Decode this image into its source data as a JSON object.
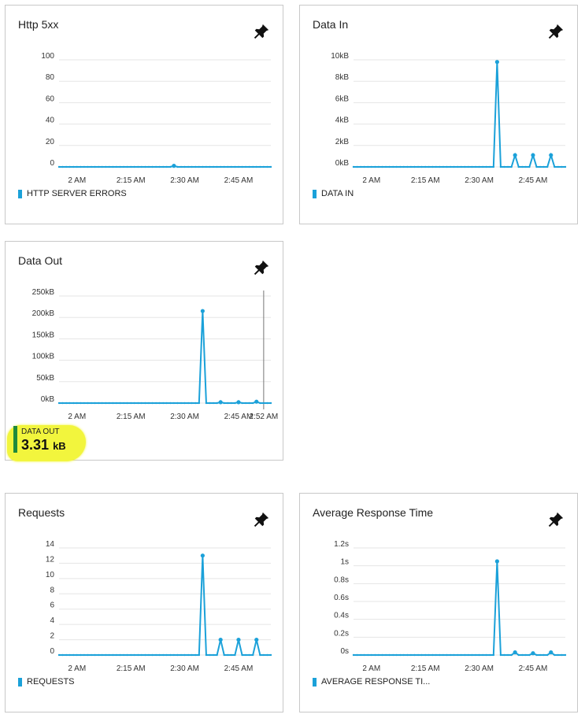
{
  "colors": {
    "series": "#1ba1d9",
    "grid": "#e5e5e5",
    "cursor": "#777777"
  },
  "pin_icon": "pushpin-icon",
  "chart_data": [
    {
      "id": "http5xx",
      "type": "line",
      "title": "Http 5xx",
      "x_ticks": [
        "2 AM",
        "2:15 AM",
        "2:30 AM",
        "2:45 AM"
      ],
      "y_ticks": [
        "100",
        "80",
        "60",
        "40",
        "20",
        "0"
      ],
      "ylim": [
        0,
        100
      ],
      "x": [
        "1:55",
        "1:56",
        "1:57",
        "1:58",
        "1:59",
        "2:00",
        "2:01",
        "2:02",
        "2:03",
        "2:04",
        "2:05",
        "2:06",
        "2:07",
        "2:08",
        "2:09",
        "2:10",
        "2:11",
        "2:12",
        "2:13",
        "2:14",
        "2:15",
        "2:16",
        "2:17",
        "2:18",
        "2:19",
        "2:20",
        "2:21",
        "2:22",
        "2:23",
        "2:24",
        "2:25",
        "2:26",
        "2:27",
        "2:28",
        "2:29",
        "2:30",
        "2:31",
        "2:32",
        "2:33",
        "2:34",
        "2:35",
        "2:36",
        "2:37",
        "2:38",
        "2:39",
        "2:40",
        "2:41",
        "2:42",
        "2:43",
        "2:44",
        "2:45",
        "2:46",
        "2:47",
        "2:48",
        "2:49",
        "2:50",
        "2:51",
        "2:52",
        "2:53",
        "2:54"
      ],
      "series": [
        {
          "name": "HTTP SERVER ERRORS",
          "values": [
            0,
            0,
            0,
            0,
            0,
            0,
            0,
            0,
            0,
            0,
            0,
            0,
            0,
            0,
            0,
            0,
            0,
            0,
            0,
            0,
            0,
            0,
            0,
            0,
            0,
            0,
            0,
            0,
            0,
            0,
            0,
            0,
            1,
            0,
            0,
            0,
            0,
            0,
            0,
            0,
            0,
            0,
            0,
            0,
            0,
            0,
            0,
            0,
            0,
            0,
            0,
            0,
            0,
            0,
            0,
            0,
            0,
            0,
            0,
            0
          ]
        }
      ]
    },
    {
      "id": "datain",
      "type": "line",
      "title": "Data In",
      "x_ticks": [
        "2 AM",
        "2:15 AM",
        "2:30 AM",
        "2:45 AM"
      ],
      "y_ticks": [
        "10kB",
        "8kB",
        "6kB",
        "4kB",
        "2kB",
        "0kB"
      ],
      "ylim": [
        0,
        10
      ],
      "x": [
        "1:55",
        "1:56",
        "1:57",
        "1:58",
        "1:59",
        "2:00",
        "2:01",
        "2:02",
        "2:03",
        "2:04",
        "2:05",
        "2:06",
        "2:07",
        "2:08",
        "2:09",
        "2:10",
        "2:11",
        "2:12",
        "2:13",
        "2:14",
        "2:15",
        "2:16",
        "2:17",
        "2:18",
        "2:19",
        "2:20",
        "2:21",
        "2:22",
        "2:23",
        "2:24",
        "2:25",
        "2:26",
        "2:27",
        "2:28",
        "2:29",
        "2:30",
        "2:31",
        "2:32",
        "2:33",
        "2:34",
        "2:35",
        "2:36",
        "2:37",
        "2:38",
        "2:39",
        "2:40",
        "2:41",
        "2:42",
        "2:43",
        "2:44",
        "2:45",
        "2:46",
        "2:47",
        "2:48",
        "2:49",
        "2:50",
        "2:51",
        "2:52",
        "2:53",
        "2:54"
      ],
      "series": [
        {
          "name": "DATA IN",
          "values": [
            0,
            0,
            0,
            0,
            0,
            0,
            0,
            0,
            0,
            0,
            0,
            0,
            0,
            0,
            0,
            0,
            0,
            0,
            0,
            0,
            0,
            0,
            0,
            0,
            0,
            0,
            0,
            0,
            0,
            0,
            0,
            0,
            0,
            0,
            0,
            0,
            0,
            0,
            0,
            0,
            9.8,
            0,
            0,
            0,
            0,
            1.1,
            0,
            0,
            0,
            0,
            1.1,
            0,
            0,
            0,
            0,
            1.1,
            0,
            0,
            0,
            0
          ]
        }
      ]
    },
    {
      "id": "dataout",
      "type": "line",
      "title": "Data Out",
      "x_ticks": [
        "2 AM",
        "2:15 AM",
        "2:30 AM",
        "2:45 AM",
        "2:52 AM"
      ],
      "y_ticks": [
        "250kB",
        "200kB",
        "150kB",
        "100kB",
        "50kB",
        "0kB"
      ],
      "ylim": [
        0,
        250
      ],
      "cursor_label": "2:52 AM",
      "x": [
        "1:55",
        "1:56",
        "1:57",
        "1:58",
        "1:59",
        "2:00",
        "2:01",
        "2:02",
        "2:03",
        "2:04",
        "2:05",
        "2:06",
        "2:07",
        "2:08",
        "2:09",
        "2:10",
        "2:11",
        "2:12",
        "2:13",
        "2:14",
        "2:15",
        "2:16",
        "2:17",
        "2:18",
        "2:19",
        "2:20",
        "2:21",
        "2:22",
        "2:23",
        "2:24",
        "2:25",
        "2:26",
        "2:27",
        "2:28",
        "2:29",
        "2:30",
        "2:31",
        "2:32",
        "2:33",
        "2:34",
        "2:35",
        "2:36",
        "2:37",
        "2:38",
        "2:39",
        "2:40",
        "2:41",
        "2:42",
        "2:43",
        "2:44",
        "2:45",
        "2:46",
        "2:47",
        "2:48",
        "2:49",
        "2:50",
        "2:51",
        "2:52",
        "2:53",
        "2:54"
      ],
      "series": [
        {
          "name": "DATA OUT",
          "values": [
            0,
            0,
            0,
            0,
            0,
            0,
            0,
            0,
            0,
            0,
            0,
            0,
            0,
            0,
            0,
            0,
            0,
            0,
            0,
            0,
            0,
            0,
            0,
            0,
            0,
            0,
            0,
            0,
            0,
            0,
            0,
            0,
            0,
            0,
            0,
            0,
            0,
            0,
            0,
            0,
            215,
            0,
            0,
            0,
            0,
            2,
            0,
            0,
            0,
            0,
            2,
            0,
            0,
            0,
            0,
            3.31,
            0,
            0,
            0,
            0
          ]
        }
      ],
      "summary": {
        "label": "DATA OUT",
        "value": "3.31",
        "unit": "kB"
      }
    },
    {
      "id": "requests",
      "type": "line",
      "title": "Requests",
      "x_ticks": [
        "2 AM",
        "2:15 AM",
        "2:30 AM",
        "2:45 AM"
      ],
      "y_ticks": [
        "14",
        "12",
        "10",
        "8",
        "6",
        "4",
        "2",
        "0"
      ],
      "ylim": [
        0,
        14
      ],
      "x": [
        "1:55",
        "1:56",
        "1:57",
        "1:58",
        "1:59",
        "2:00",
        "2:01",
        "2:02",
        "2:03",
        "2:04",
        "2:05",
        "2:06",
        "2:07",
        "2:08",
        "2:09",
        "2:10",
        "2:11",
        "2:12",
        "2:13",
        "2:14",
        "2:15",
        "2:16",
        "2:17",
        "2:18",
        "2:19",
        "2:20",
        "2:21",
        "2:22",
        "2:23",
        "2:24",
        "2:25",
        "2:26",
        "2:27",
        "2:28",
        "2:29",
        "2:30",
        "2:31",
        "2:32",
        "2:33",
        "2:34",
        "2:35",
        "2:36",
        "2:37",
        "2:38",
        "2:39",
        "2:40",
        "2:41",
        "2:42",
        "2:43",
        "2:44",
        "2:45",
        "2:46",
        "2:47",
        "2:48",
        "2:49",
        "2:50",
        "2:51",
        "2:52",
        "2:53",
        "2:54"
      ],
      "series": [
        {
          "name": "REQUESTS",
          "values": [
            0,
            0,
            0,
            0,
            0,
            0,
            0,
            0,
            0,
            0,
            0,
            0,
            0,
            0,
            0,
            0,
            0,
            0,
            0,
            0,
            0,
            0,
            0,
            0,
            0,
            0,
            0,
            0,
            0,
            0,
            0,
            0,
            0,
            0,
            0,
            0,
            0,
            0,
            0,
            0,
            13,
            0,
            0,
            0,
            0,
            2,
            0,
            0,
            0,
            0,
            2,
            0,
            0,
            0,
            0,
            2,
            0,
            0,
            0,
            0
          ]
        }
      ]
    },
    {
      "id": "avgresp",
      "type": "line",
      "title": "Average Response Time",
      "x_ticks": [
        "2 AM",
        "2:15 AM",
        "2:30 AM",
        "2:45 AM"
      ],
      "y_ticks": [
        "1.2s",
        "1s",
        "0.8s",
        "0.6s",
        "0.4s",
        "0.2s",
        "0s"
      ],
      "ylim": [
        0,
        1.2
      ],
      "x": [
        "1:55",
        "1:56",
        "1:57",
        "1:58",
        "1:59",
        "2:00",
        "2:01",
        "2:02",
        "2:03",
        "2:04",
        "2:05",
        "2:06",
        "2:07",
        "2:08",
        "2:09",
        "2:10",
        "2:11",
        "2:12",
        "2:13",
        "2:14",
        "2:15",
        "2:16",
        "2:17",
        "2:18",
        "2:19",
        "2:20",
        "2:21",
        "2:22",
        "2:23",
        "2:24",
        "2:25",
        "2:26",
        "2:27",
        "2:28",
        "2:29",
        "2:30",
        "2:31",
        "2:32",
        "2:33",
        "2:34",
        "2:35",
        "2:36",
        "2:37",
        "2:38",
        "2:39",
        "2:40",
        "2:41",
        "2:42",
        "2:43",
        "2:44",
        "2:45",
        "2:46",
        "2:47",
        "2:48",
        "2:49",
        "2:50",
        "2:51",
        "2:52",
        "2:53",
        "2:54"
      ],
      "series": [
        {
          "name": "AVERAGE RESPONSE TI...",
          "values": [
            0,
            0,
            0,
            0,
            0,
            0,
            0,
            0,
            0,
            0,
            0,
            0,
            0,
            0,
            0,
            0,
            0,
            0,
            0,
            0,
            0,
            0,
            0,
            0,
            0,
            0,
            0,
            0,
            0,
            0,
            0,
            0,
            0,
            0,
            0,
            0,
            0,
            0,
            0,
            0,
            1.05,
            0,
            0,
            0,
            0,
            0.03,
            0,
            0,
            0,
            0,
            0.02,
            0,
            0,
            0,
            0,
            0.03,
            0,
            0,
            0,
            0
          ]
        }
      ]
    }
  ]
}
